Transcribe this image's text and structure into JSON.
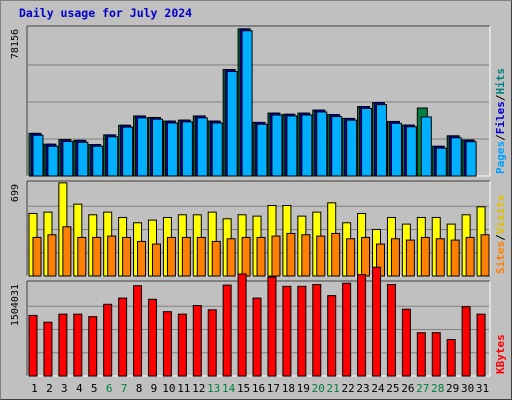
{
  "chart_data": {
    "type": "bar",
    "title": "Daily usage for July 2024",
    "days": [
      "1",
      "2",
      "3",
      "4",
      "5",
      "6",
      "7",
      "8",
      "9",
      "10",
      "11",
      "12",
      "13",
      "14",
      "15",
      "16",
      "17",
      "18",
      "19",
      "20",
      "21",
      "22",
      "23",
      "24",
      "25",
      "26",
      "27",
      "28",
      "29",
      "30",
      "31"
    ],
    "weekend_days": [
      "6",
      "7",
      "13",
      "14",
      "20",
      "21",
      "27",
      "28"
    ],
    "panels": [
      {
        "name": "hits-files-pages",
        "ymax": 78156,
        "ymax_label": "78156",
        "side_labels": [
          {
            "text": "Pages",
            "color": "#00a0ff"
          },
          {
            "text": "/",
            "color": "#000000"
          },
          {
            "text": "Files",
            "color": "#0000d0"
          },
          {
            "text": "/",
            "color": "#000000"
          },
          {
            "text": "Hits",
            "color": "#008080"
          }
        ],
        "series": [
          {
            "name": "Hits",
            "color": "#008040",
            "values": [
              22500,
              16800,
              19200,
              18800,
              16600,
              21700,
              26800,
              31700,
              30900,
              29000,
              29500,
              31700,
              29000,
              56200,
              77700,
              28300,
              33200,
              32600,
              33200,
              34800,
              32400,
              30400,
              36700,
              38700,
              28800,
              26900,
              35900,
              15700,
              21200,
              19000,
              0
            ]
          },
          {
            "name": "Files",
            "color": "#0000d0",
            "values": [
              22500,
              16800,
              19200,
              18800,
              16600,
              21700,
              26800,
              31700,
              30900,
              29000,
              29500,
              31700,
              29000,
              56200,
              77700,
              28300,
              33200,
              32600,
              33200,
              34800,
              32400,
              30400,
              36700,
              38700,
              28800,
              26900,
              0,
              15700,
              21200,
              19000,
              0
            ]
          },
          {
            "name": "Pages",
            "color": "#00b0ff",
            "values": [
              21500,
              15700,
              18200,
              17800,
              15700,
              20700,
              25800,
              30700,
              30000,
              28000,
              28600,
              30700,
              28000,
              55200,
              76700,
              27300,
              32200,
              31700,
              32200,
              33800,
              31400,
              29500,
              35700,
              37700,
              27800,
              26000,
              31200,
              14700,
              20200,
              18100,
              0
            ]
          }
        ]
      },
      {
        "name": "visits-sites",
        "ymax": 699,
        "ymax_label": "699",
        "side_labels": [
          {
            "text": "Sites",
            "color": "#ff8000"
          },
          {
            "text": "/",
            "color": "#000000"
          },
          {
            "text": "Visits",
            "color": "#e0c000"
          }
        ],
        "series": [
          {
            "name": "Visits",
            "color": "#ffff00",
            "values": [
              470,
              480,
              700,
              540,
              460,
              480,
              440,
              400,
              420,
              440,
              460,
              460,
              480,
              430,
              460,
              450,
              530,
              530,
              450,
              480,
              550,
              400,
              470,
              350,
              440,
              390,
              440,
              440,
              390,
              460,
              520
            ]
          },
          {
            "name": "Sites",
            "color": "#ff8000",
            "values": [
              290,
              310,
              370,
              290,
              290,
              300,
              290,
              260,
              240,
              290,
              290,
              290,
              260,
              280,
              290,
              290,
              300,
              320,
              310,
              300,
              320,
              280,
              290,
              240,
              280,
              270,
              290,
              280,
              270,
              290,
              310
            ]
          }
        ]
      },
      {
        "name": "kbytes",
        "ymax": 1504031,
        "ymax_label": "1504031",
        "side_labels": [
          {
            "text": "KBytes",
            "color": "#ff0000"
          }
        ],
        "series": [
          {
            "name": "KBytes",
            "color": "#ff0000",
            "values": [
              980000,
              870000,
              1000000,
              1000000,
              960000,
              1160000,
              1260000,
              1460000,
              1240000,
              1040000,
              1000000,
              1140000,
              1070000,
              1470000,
              1650000,
              1260000,
              1600000,
              1450000,
              1450000,
              1480000,
              1300000,
              1500000,
              1640000,
              1760000,
              1480000,
              1080000,
              700000,
              700000,
              590000,
              1120000,
              1000000
            ]
          }
        ]
      }
    ]
  }
}
